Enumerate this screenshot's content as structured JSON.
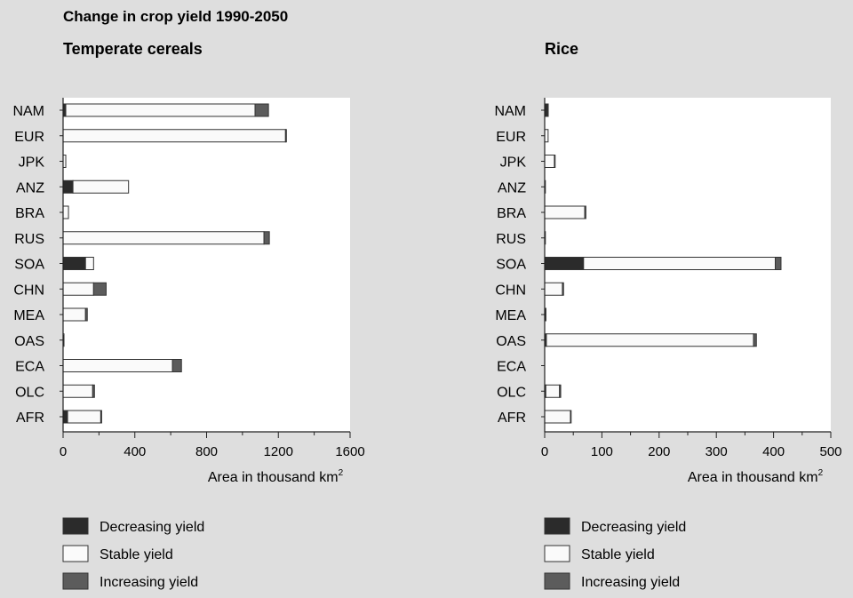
{
  "figure_title": "Change in crop yield 1990-2050",
  "colors": {
    "decreasing": "#2b2b2b",
    "stable": "#fafafa",
    "increasing": "#5c5c5c",
    "plot_bg": "#ffffff",
    "outline": "#333333"
  },
  "chart_data": [
    {
      "type": "bar",
      "orientation": "horizontal",
      "stacked": true,
      "title": "Temperate cereals",
      "xlabel": "Area in thousand km",
      "xlabel_sup": "2",
      "xlim": [
        0,
        1600
      ],
      "xticks": [
        0,
        400,
        800,
        1200,
        1600
      ],
      "xtick_labels": [
        "0",
        "400",
        "800",
        "1200",
        "1600"
      ],
      "categories": [
        "NAM",
        "EUR",
        "JPK",
        "ANZ",
        "BRA",
        "RUS",
        "SOA",
        "CHN",
        "MEA",
        "OAS",
        "ECA",
        "OLC",
        "AFR"
      ],
      "series": [
        {
          "name": "Decreasing yield",
          "values": [
            15,
            0,
            0,
            55,
            0,
            0,
            125,
            0,
            0,
            0,
            0,
            0,
            25
          ]
        },
        {
          "name": "Stable yield",
          "values": [
            1055,
            1240,
            15,
            310,
            30,
            1120,
            45,
            170,
            125,
            5,
            610,
            165,
            185
          ]
        },
        {
          "name": "Increasing yield",
          "values": [
            75,
            5,
            0,
            0,
            0,
            30,
            0,
            70,
            10,
            0,
            50,
            10,
            5
          ]
        }
      ],
      "legend": {
        "position": "bottom"
      }
    },
    {
      "type": "bar",
      "orientation": "horizontal",
      "stacked": true,
      "title": "Rice",
      "xlabel": "Area in thousand km",
      "xlabel_sup": "2",
      "xlim": [
        0,
        500
      ],
      "xticks": [
        0,
        100,
        200,
        300,
        400,
        500
      ],
      "xtick_labels": [
        "0",
        "100",
        "200",
        "300",
        "400",
        "500"
      ],
      "categories": [
        "NAM",
        "EUR",
        "JPK",
        "ANZ",
        "BRA",
        "RUS",
        "SOA",
        "CHN",
        "MEA",
        "OAS",
        "ECA",
        "OLC",
        "AFR"
      ],
      "series": [
        {
          "name": "Decreasing yield",
          "values": [
            5,
            0,
            0,
            1,
            0,
            1,
            68,
            0,
            1,
            3,
            0,
            2,
            0
          ]
        },
        {
          "name": "Stable yield",
          "values": [
            1,
            6,
            17,
            0,
            70,
            0,
            335,
            31,
            1,
            362,
            0,
            24,
            45
          ]
        },
        {
          "name": "Increasing yield",
          "values": [
            0,
            0,
            1,
            0,
            2,
            0,
            10,
            2,
            0,
            5,
            0,
            2,
            1
          ]
        }
      ],
      "legend": {
        "position": "bottom"
      }
    }
  ]
}
